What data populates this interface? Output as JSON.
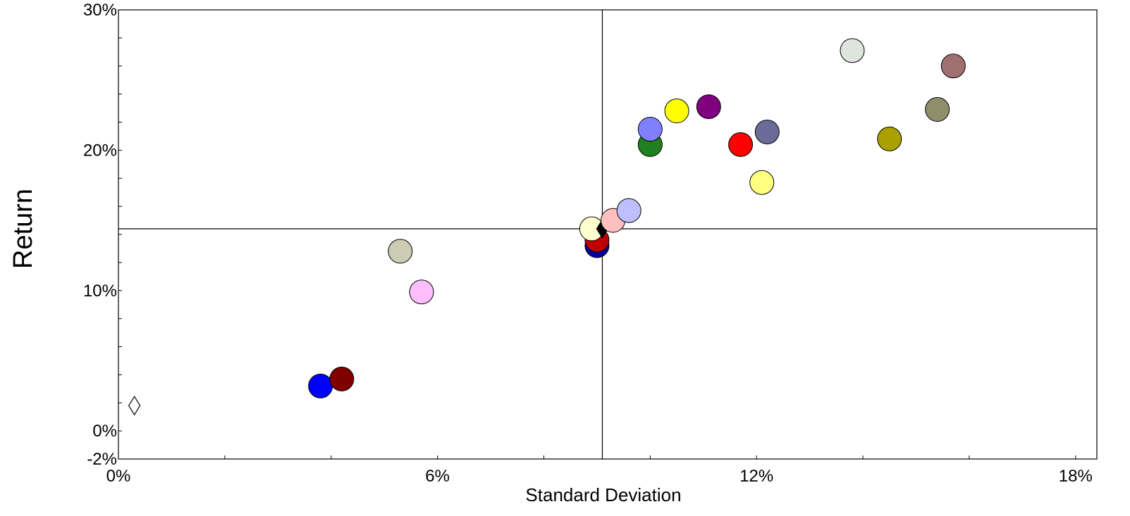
{
  "chart_data": {
    "type": "scatter",
    "xlabel": "Standard Deviation",
    "ylabel": "Return",
    "xlim": [
      0,
      18.4
    ],
    "ylim": [
      -2,
      30
    ],
    "x_ticks": [
      {
        "value": 0,
        "label": "0%"
      },
      {
        "value": 6,
        "label": "6%"
      },
      {
        "value": 12,
        "label": "12%"
      },
      {
        "value": 18,
        "label": "18%"
      }
    ],
    "y_ticks": [
      {
        "value": -2,
        "label": "-2%"
      },
      {
        "value": 0,
        "label": "0%"
      },
      {
        "value": 10,
        "label": "10%"
      },
      {
        "value": 20,
        "label": "20%"
      },
      {
        "value": 30,
        "label": "30%"
      }
    ],
    "reference_lines": {
      "x": 9.1,
      "y": 14.4
    },
    "points": [
      {
        "x": 0.3,
        "y": 1.8,
        "color": "#ffffff",
        "marker": "diamond"
      },
      {
        "x": 3.8,
        "y": 3.2,
        "color": "#0000ff",
        "marker": "circle"
      },
      {
        "x": 4.2,
        "y": 3.7,
        "color": "#800000",
        "marker": "circle"
      },
      {
        "x": 5.3,
        "y": 12.8,
        "color": "#cccbb4",
        "marker": "circle"
      },
      {
        "x": 5.7,
        "y": 9.9,
        "color": "#ffbfff",
        "marker": "circle"
      },
      {
        "x": 9.0,
        "y": 13.2,
        "color": "#0000a0",
        "marker": "circle"
      },
      {
        "x": 9.0,
        "y": 13.6,
        "color": "#c00000",
        "marker": "circle"
      },
      {
        "x": 8.9,
        "y": 14.4,
        "color": "#ffffd0",
        "marker": "circle"
      },
      {
        "x": 9.1,
        "y": 14.4,
        "color": "#000000",
        "marker": "diamond"
      },
      {
        "x": 9.3,
        "y": 15.0,
        "color": "#ffbfbf",
        "marker": "circle"
      },
      {
        "x": 9.6,
        "y": 15.7,
        "color": "#bfbfff",
        "marker": "circle"
      },
      {
        "x": 10.0,
        "y": 20.4,
        "color": "#208020",
        "marker": "circle"
      },
      {
        "x": 10.0,
        "y": 21.5,
        "color": "#8080ff",
        "marker": "circle"
      },
      {
        "x": 10.5,
        "y": 22.8,
        "color": "#ffff00",
        "marker": "circle"
      },
      {
        "x": 11.1,
        "y": 23.1,
        "color": "#800080",
        "marker": "circle"
      },
      {
        "x": 11.7,
        "y": 20.4,
        "color": "#ff0000",
        "marker": "circle"
      },
      {
        "x": 12.1,
        "y": 17.7,
        "color": "#ffff80",
        "marker": "circle"
      },
      {
        "x": 12.2,
        "y": 21.3,
        "color": "#6b6b9a",
        "marker": "circle"
      },
      {
        "x": 13.8,
        "y": 27.1,
        "color": "#dde5dd",
        "marker": "circle"
      },
      {
        "x": 14.5,
        "y": 20.8,
        "color": "#aaa000",
        "marker": "circle"
      },
      {
        "x": 15.4,
        "y": 22.9,
        "color": "#8e8e6b",
        "marker": "circle"
      },
      {
        "x": 15.7,
        "y": 26.0,
        "color": "#a07070",
        "marker": "circle"
      }
    ]
  }
}
